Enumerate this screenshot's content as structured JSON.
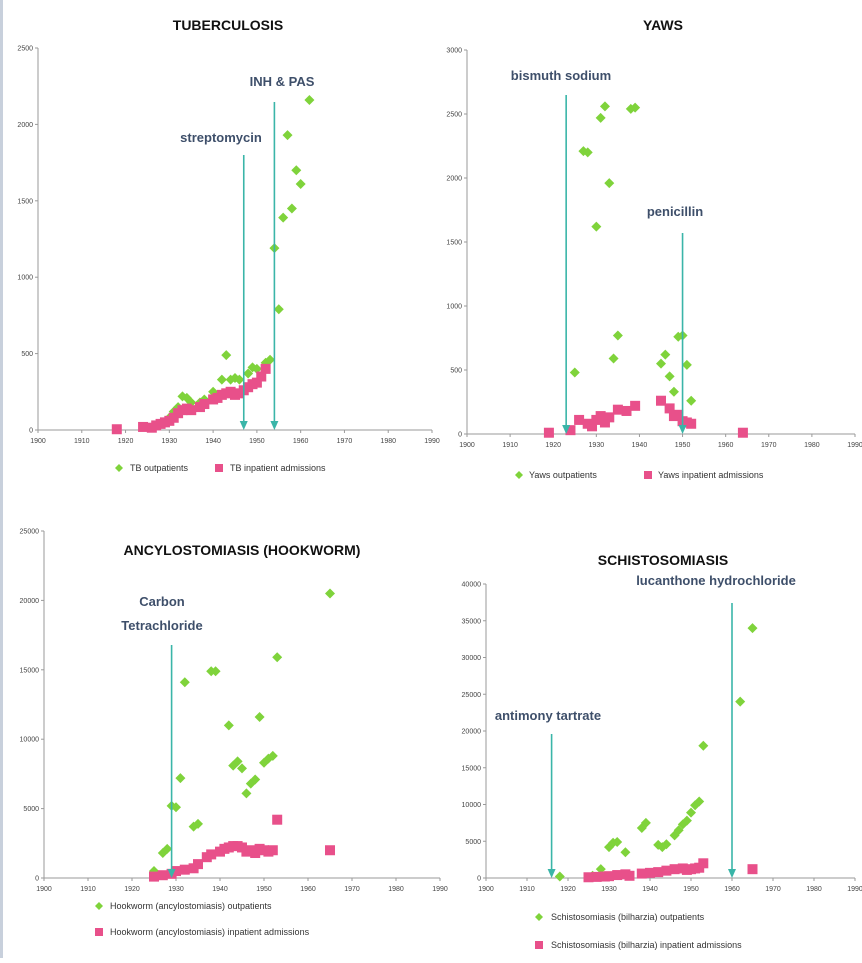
{
  "chart_data": [
    {
      "type": "scatter",
      "title": "TUBERCULOSIS",
      "xlabel": "",
      "ylabel": "",
      "xlim": [
        1900,
        1990
      ],
      "ylim": [
        0,
        2500
      ],
      "xticks": [
        1900,
        1910,
        1920,
        1930,
        1940,
        1950,
        1960,
        1970,
        1980,
        1990
      ],
      "yticks": [
        0,
        500,
        1000,
        1500,
        2000,
        2500
      ],
      "grid": false,
      "legend": "bottom",
      "series": [
        {
          "name": "TB outpatients",
          "marker": "diamond",
          "color": "#7fd33b",
          "points": [
            [
              1930,
              80
            ],
            [
              1931,
              120
            ],
            [
              1932,
              150
            ],
            [
              1933,
              220
            ],
            [
              1934,
              210
            ],
            [
              1935,
              180
            ],
            [
              1937,
              180
            ],
            [
              1938,
              200
            ],
            [
              1940,
              250
            ],
            [
              1942,
              330
            ],
            [
              1943,
              490
            ],
            [
              1944,
              330
            ],
            [
              1945,
              340
            ],
            [
              1946,
              330
            ],
            [
              1948,
              370
            ],
            [
              1949,
              410
            ],
            [
              1950,
              400
            ],
            [
              1952,
              440
            ],
            [
              1953,
              460
            ],
            [
              1954,
              1190
            ],
            [
              1955,
              790
            ],
            [
              1956,
              1390
            ],
            [
              1957,
              1930
            ],
            [
              1958,
              1450
            ],
            [
              1959,
              1700
            ],
            [
              1960,
              1610
            ],
            [
              1962,
              2160
            ]
          ]
        },
        {
          "name": "TB inpatient admissions",
          "marker": "square",
          "color": "#e8508a",
          "points": [
            [
              1918,
              5
            ],
            [
              1924,
              20
            ],
            [
              1926,
              15
            ],
            [
              1927,
              30
            ],
            [
              1928,
              40
            ],
            [
              1929,
              50
            ],
            [
              1930,
              60
            ],
            [
              1931,
              80
            ],
            [
              1932,
              110
            ],
            [
              1933,
              130
            ],
            [
              1934,
              140
            ],
            [
              1935,
              130
            ],
            [
              1937,
              150
            ],
            [
              1938,
              170
            ],
            [
              1940,
              200
            ],
            [
              1941,
              210
            ],
            [
              1942,
              230
            ],
            [
              1943,
              240
            ],
            [
              1944,
              250
            ],
            [
              1945,
              230
            ],
            [
              1946,
              240
            ],
            [
              1947,
              260
            ],
            [
              1948,
              280
            ],
            [
              1949,
              300
            ],
            [
              1950,
              310
            ],
            [
              1951,
              350
            ],
            [
              1952,
              400
            ]
          ]
        }
      ],
      "annotations": [
        {
          "text": "streptomycin",
          "year": 1947
        },
        {
          "text": "INH & PAS",
          "year": 1954
        }
      ]
    },
    {
      "type": "scatter",
      "title": "YAWS",
      "xlabel": "",
      "ylabel": "",
      "xlim": [
        1900,
        1990
      ],
      "ylim": [
        0,
        3000
      ],
      "xticks": [
        1900,
        1910,
        1920,
        1930,
        1940,
        1950,
        1960,
        1970,
        1980,
        1990
      ],
      "yticks": [
        0,
        500,
        1000,
        1500,
        2000,
        2500,
        3000
      ],
      "grid": false,
      "legend": "bottom",
      "series": [
        {
          "name": "Yaws outpatients",
          "marker": "diamond",
          "color": "#7fd33b",
          "points": [
            [
              1925,
              480
            ],
            [
              1927,
              2210
            ],
            [
              1928,
              2200
            ],
            [
              1930,
              1620
            ],
            [
              1931,
              2470
            ],
            [
              1932,
              2560
            ],
            [
              1933,
              1960
            ],
            [
              1934,
              590
            ],
            [
              1935,
              770
            ],
            [
              1938,
              2540
            ],
            [
              1939,
              2550
            ],
            [
              1945,
              550
            ],
            [
              1946,
              620
            ],
            [
              1947,
              450
            ],
            [
              1948,
              330
            ],
            [
              1949,
              760
            ],
            [
              1950,
              770
            ],
            [
              1951,
              540
            ],
            [
              1952,
              260
            ]
          ]
        },
        {
          "name": "Yaws inpatient admissions",
          "marker": "square",
          "color": "#e8508a",
          "points": [
            [
              1919,
              10
            ],
            [
              1924,
              30
            ],
            [
              1926,
              110
            ],
            [
              1928,
              80
            ],
            [
              1929,
              60
            ],
            [
              1930,
              110
            ],
            [
              1931,
              140
            ],
            [
              1932,
              90
            ],
            [
              1933,
              130
            ],
            [
              1935,
              190
            ],
            [
              1937,
              180
            ],
            [
              1939,
              220
            ],
            [
              1945,
              260
            ],
            [
              1947,
              200
            ],
            [
              1948,
              140
            ],
            [
              1949,
              150
            ],
            [
              1950,
              100
            ],
            [
              1951,
              90
            ],
            [
              1952,
              80
            ],
            [
              1964,
              10
            ]
          ]
        }
      ],
      "annotations": [
        {
          "text": "bismuth sodium",
          "year": 1923
        },
        {
          "text": "penicillin",
          "year": 1950
        }
      ]
    },
    {
      "type": "scatter",
      "title": "ANCYLOSTOMIASIS (HOOKWORM)",
      "xlabel": "",
      "ylabel": "",
      "xlim": [
        1900,
        1990
      ],
      "ylim": [
        0,
        25000
      ],
      "xticks": [
        1900,
        1910,
        1920,
        1930,
        1940,
        1950,
        1960,
        1970,
        1980,
        1990
      ],
      "yticks": [
        0,
        5000,
        10000,
        15000,
        20000,
        25000
      ],
      "grid": false,
      "legend": "bottom",
      "series": [
        {
          "name": "Hookworm (ancylostomiasis) outpatients",
          "marker": "diamond",
          "color": "#7fd33b",
          "points": [
            [
              1925,
              500
            ],
            [
              1927,
              1800
            ],
            [
              1928,
              2100
            ],
            [
              1929,
              5200
            ],
            [
              1930,
              5100
            ],
            [
              1931,
              7200
            ],
            [
              1932,
              14100
            ],
            [
              1934,
              3700
            ],
            [
              1935,
              3900
            ],
            [
              1938,
              14900
            ],
            [
              1939,
              14900
            ],
            [
              1942,
              11000
            ],
            [
              1943,
              8100
            ],
            [
              1944,
              8400
            ],
            [
              1945,
              7900
            ],
            [
              1946,
              6100
            ],
            [
              1947,
              6800
            ],
            [
              1948,
              7100
            ],
            [
              1949,
              11600
            ],
            [
              1950,
              8300
            ],
            [
              1951,
              8600
            ],
            [
              1952,
              8800
            ],
            [
              1953,
              15900
            ],
            [
              1965,
              20500
            ]
          ]
        },
        {
          "name": "Hookworm (ancylostomiasis) inpatient admissions",
          "marker": "square",
          "color": "#e8508a",
          "points": [
            [
              1925,
              100
            ],
            [
              1927,
              200
            ],
            [
              1929,
              300
            ],
            [
              1930,
              500
            ],
            [
              1932,
              600
            ],
            [
              1934,
              700
            ],
            [
              1935,
              1000
            ],
            [
              1937,
              1500
            ],
            [
              1938,
              1700
            ],
            [
              1940,
              1900
            ],
            [
              1941,
              2100
            ],
            [
              1942,
              2200
            ],
            [
              1943,
              2300
            ],
            [
              1944,
              2300
            ],
            [
              1945,
              2200
            ],
            [
              1946,
              1900
            ],
            [
              1947,
              2000
            ],
            [
              1948,
              1800
            ],
            [
              1949,
              2100
            ],
            [
              1950,
              2000
            ],
            [
              1951,
              1900
            ],
            [
              1952,
              2000
            ],
            [
              1953,
              4200
            ],
            [
              1965,
              2000
            ]
          ]
        }
      ],
      "annotations": [
        {
          "text": "Carbon",
          "year": 1929
        },
        {
          "text": "Tetrachloride",
          "year": 1929
        }
      ]
    },
    {
      "type": "scatter",
      "title": "SCHISTOSOMIASIS",
      "xlabel": "",
      "ylabel": "",
      "xlim": [
        1900,
        1990
      ],
      "ylim": [
        0,
        40000
      ],
      "xticks": [
        1900,
        1910,
        1920,
        1930,
        1940,
        1950,
        1960,
        1970,
        1980,
        1990
      ],
      "yticks": [
        0,
        5000,
        10000,
        15000,
        20000,
        25000,
        30000,
        35000,
        40000
      ],
      "grid": false,
      "legend": "bottom",
      "series": [
        {
          "name": "Schistosomiasis (bilharzia) outpatients",
          "marker": "diamond",
          "color": "#7fd33b",
          "points": [
            [
              1918,
              200
            ],
            [
              1926,
              300
            ],
            [
              1928,
              1200
            ],
            [
              1930,
              4200
            ],
            [
              1931,
              4800
            ],
            [
              1932,
              4900
            ],
            [
              1934,
              3500
            ],
            [
              1938,
              6800
            ],
            [
              1939,
              7500
            ],
            [
              1942,
              4500
            ],
            [
              1943,
              4200
            ],
            [
              1944,
              4600
            ],
            [
              1946,
              5800
            ],
            [
              1947,
              6500
            ],
            [
              1948,
              7300
            ],
            [
              1949,
              7800
            ],
            [
              1950,
              8900
            ],
            [
              1951,
              9900
            ],
            [
              1952,
              10400
            ],
            [
              1953,
              18000
            ],
            [
              1962,
              24000
            ],
            [
              1965,
              34000
            ]
          ]
        },
        {
          "name": "Schistosomiasis (bilharzia) inpatient admissions",
          "marker": "square",
          "color": "#e8508a",
          "points": [
            [
              1925,
              100
            ],
            [
              1927,
              150
            ],
            [
              1929,
              200
            ],
            [
              1930,
              250
            ],
            [
              1932,
              400
            ],
            [
              1934,
              500
            ],
            [
              1935,
              300
            ],
            [
              1938,
              600
            ],
            [
              1940,
              700
            ],
            [
              1942,
              800
            ],
            [
              1944,
              1000
            ],
            [
              1946,
              1200
            ],
            [
              1948,
              1300
            ],
            [
              1949,
              1100
            ],
            [
              1950,
              1200
            ],
            [
              1951,
              1300
            ],
            [
              1952,
              1400
            ],
            [
              1953,
              2000
            ],
            [
              1965,
              1200
            ]
          ]
        }
      ],
      "annotations": [
        {
          "text": "antimony tartrate",
          "year": 1916
        },
        {
          "text": "lucanthone hydrochloride",
          "year": 1960
        }
      ]
    }
  ]
}
